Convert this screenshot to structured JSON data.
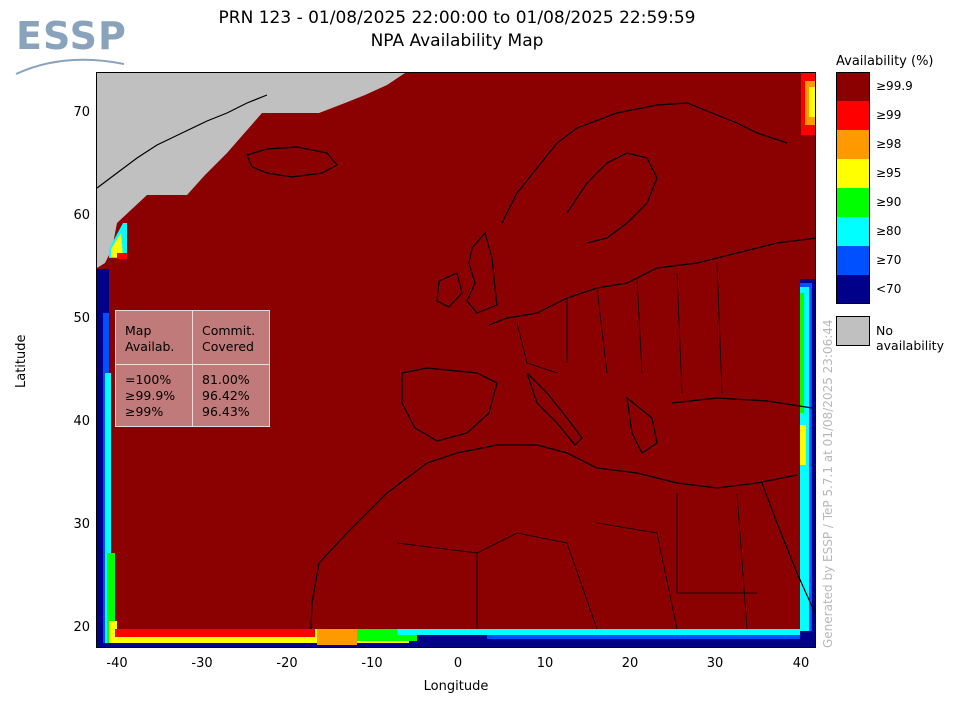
{
  "logo": {
    "text": "ESSP"
  },
  "title": {
    "line1": "PRN 123 - 01/08/2025 22:00:00 to 01/08/2025 22:59:59",
    "line2": "NPA Availability Map"
  },
  "axes": {
    "xlabel": "Longitude",
    "ylabel": "Latitude",
    "x_ticks": [
      "-40",
      "-30",
      "-20",
      "-10",
      "0",
      "10",
      "20",
      "30",
      "40"
    ],
    "y_ticks": [
      "70",
      "60",
      "50",
      "40",
      "30",
      "20"
    ]
  },
  "stats": {
    "col1_header": "Map\nAvailab.",
    "col2_header": "Commit.\nCovered",
    "rows": [
      {
        "label": "=100%",
        "value": "81.00%"
      },
      {
        "label": "≥99.9%",
        "value": "96.42%"
      },
      {
        "label": "≥99%",
        "value": "96.43%"
      }
    ]
  },
  "legend": {
    "title": "Availability (%)",
    "items": [
      {
        "label": "≥99.9",
        "color": "#8b0000"
      },
      {
        "label": "≥99",
        "color": "#ff0000"
      },
      {
        "label": "≥98",
        "color": "#ff9900"
      },
      {
        "label": "≥95",
        "color": "#ffff00"
      },
      {
        "label": "≥90",
        "color": "#00ff00"
      },
      {
        "label": "≥80",
        "color": "#00ffff"
      },
      {
        "label": "≥70",
        "color": "#0050ff"
      },
      {
        "label": "<70",
        "color": "#00008b"
      }
    ],
    "no_availability": {
      "label": "No availability",
      "color": "#c0c0c0"
    }
  },
  "generated_by": "Generated by ESSP / TeP 5.7.1 at 01/08/2025 23:06:44"
}
